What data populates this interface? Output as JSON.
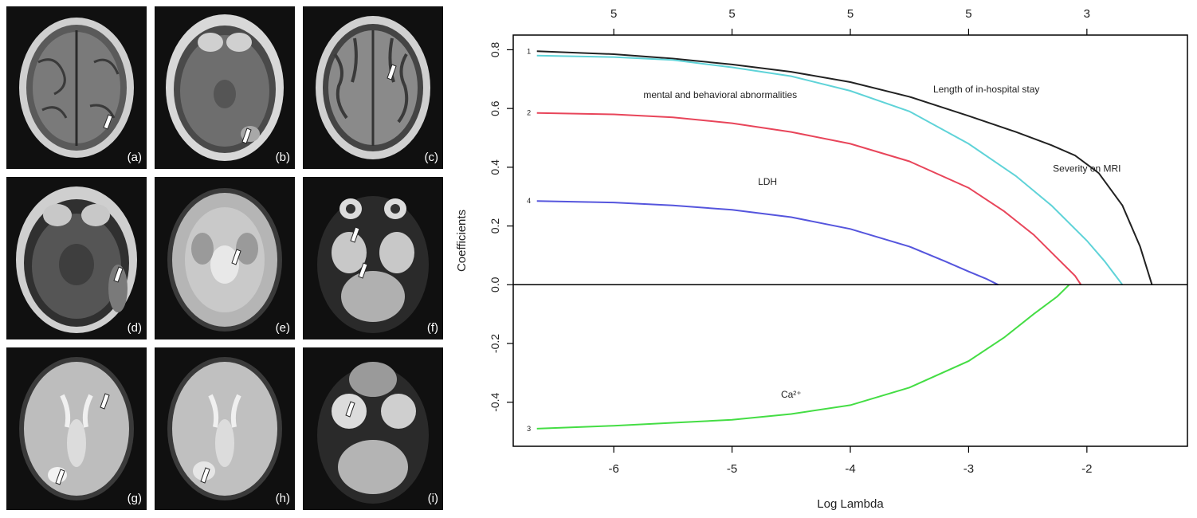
{
  "figure": {
    "panels": [
      {
        "label": "(a)"
      },
      {
        "label": "(b)"
      },
      {
        "label": "(c)"
      },
      {
        "label": "(d)"
      },
      {
        "label": "(e)"
      },
      {
        "label": "(f)"
      },
      {
        "label": "(g)"
      },
      {
        "label": "(h)"
      },
      {
        "label": "(i)"
      }
    ]
  },
  "chart_data": {
    "type": "line",
    "title": "",
    "xlabel": "Log Lambda",
    "ylabel": "Coefficients",
    "xlim": [
      -6.85,
      -1.15
    ],
    "ylim": [
      -0.55,
      0.85
    ],
    "x_ticks": [
      -6,
      -5,
      -4,
      -3,
      -2
    ],
    "x_tick_labels": [
      "-6",
      "-5",
      "-4",
      "-3",
      "-2"
    ],
    "y_ticks": [
      0.8,
      0.6,
      0.4,
      0.2,
      0.0,
      -0.2,
      -0.4
    ],
    "y_tick_labels": [
      "0.8",
      "0.6",
      "0.4",
      "0.2",
      "0.0",
      "-0.2",
      "-0.4"
    ],
    "top_axis": {
      "ticks": [
        -6,
        -5,
        -4,
        -3,
        -2
      ],
      "labels": [
        "5",
        "5",
        "5",
        "5",
        "3"
      ]
    },
    "grid": false,
    "zero_line": true,
    "series": [
      {
        "index": "1",
        "name": "Length    of in-hospital stay",
        "color": "#222222",
        "x": [
          -6.65,
          -6.0,
          -5.5,
          -5.0,
          -4.5,
          -4.0,
          -3.5,
          -3.0,
          -2.6,
          -2.3,
          -2.1,
          -1.9,
          -1.7,
          -1.55,
          -1.45
        ],
        "y": [
          0.795,
          0.785,
          0.77,
          0.75,
          0.725,
          0.69,
          0.64,
          0.575,
          0.52,
          0.475,
          0.44,
          0.38,
          0.27,
          0.13,
          0.0
        ]
      },
      {
        "index": "",
        "name": "Severity on MRI",
        "color": "#5fd3d8",
        "x": [
          -6.65,
          -6.0,
          -5.5,
          -5.0,
          -4.5,
          -4.0,
          -3.5,
          -3.0,
          -2.6,
          -2.3,
          -2.0,
          -1.85,
          -1.7
        ],
        "y": [
          0.78,
          0.775,
          0.765,
          0.74,
          0.71,
          0.66,
          0.59,
          0.48,
          0.37,
          0.27,
          0.15,
          0.08,
          0.0
        ]
      },
      {
        "index": "2",
        "name": "mental and behavioral abnormalities",
        "color": "#e8455a",
        "x": [
          -6.65,
          -6.0,
          -5.5,
          -5.0,
          -4.5,
          -4.0,
          -3.5,
          -3.0,
          -2.7,
          -2.45,
          -2.25,
          -2.1,
          -2.05
        ],
        "y": [
          0.585,
          0.58,
          0.57,
          0.55,
          0.52,
          0.48,
          0.42,
          0.33,
          0.25,
          0.17,
          0.09,
          0.03,
          0.0
        ]
      },
      {
        "index": "4",
        "name": "LDH",
        "color": "#5555dd",
        "x": [
          -6.65,
          -6.0,
          -5.5,
          -5.0,
          -4.5,
          -4.0,
          -3.5,
          -3.2,
          -3.0,
          -2.85,
          -2.75
        ],
        "y": [
          0.285,
          0.28,
          0.27,
          0.255,
          0.23,
          0.19,
          0.13,
          0.08,
          0.045,
          0.02,
          0.0
        ]
      },
      {
        "index": "3",
        "name": "Ca²⁺",
        "color": "#44dd44",
        "x": [
          -6.65,
          -6.0,
          -5.5,
          -5.0,
          -4.5,
          -4.0,
          -3.5,
          -3.0,
          -2.7,
          -2.45,
          -2.25,
          -2.15
        ],
        "y": [
          -0.49,
          -0.48,
          -0.47,
          -0.46,
          -0.44,
          -0.41,
          -0.35,
          -0.26,
          -0.18,
          -0.1,
          -0.04,
          0.0
        ]
      }
    ],
    "annotations": [
      {
        "text": "mental and behavioral abnormalities",
        "x": -5.1,
        "y": 0.635
      },
      {
        "text": "Length    of in-hospital stay",
        "x": -2.85,
        "y": 0.655
      },
      {
        "text": "Severity on MRI",
        "x": -2.0,
        "y": 0.385
      },
      {
        "text": "LDH",
        "x": -4.7,
        "y": 0.34
      },
      {
        "text": "Ca²⁺",
        "x": -4.5,
        "y": -0.385
      }
    ]
  }
}
